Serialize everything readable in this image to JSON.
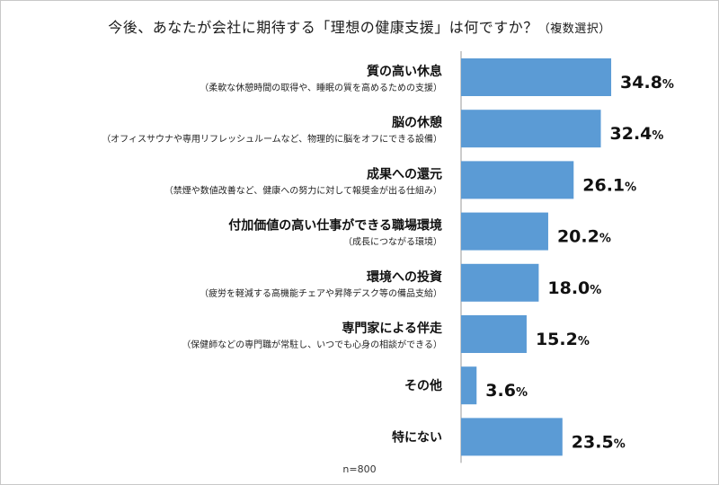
{
  "chart_data": {
    "type": "bar",
    "orientation": "horizontal",
    "title": "今後、あなたが会社に期待する「理想の健康支援」は何ですか？",
    "title_suffix": "（複数選択）",
    "note": "n=800",
    "unit": "%",
    "bar_color": "#5b9bd5",
    "xlim": [
      0,
      40
    ],
    "categories": [
      {
        "label": "質の高い休息",
        "sub": "（柔軟な休憩時間の取得や、睡眠の質を高めるための支援）"
      },
      {
        "label": "脳の休憩",
        "sub": "（オフィスサウナや専用リフレッシュルームなど、物理的に脳をオフにできる設備）"
      },
      {
        "label": "成果への還元",
        "sub": "（禁煙や数値改善など、健康への努力に対して報奨金が出る仕組み）"
      },
      {
        "label": "付加価値の高い仕事ができる職場環境",
        "sub": "（成長につながる環境）"
      },
      {
        "label": "環境への投資",
        "sub": "（疲労を軽減する高機能チェアや昇降デスク等の備品支給）"
      },
      {
        "label": "専門家による伴走",
        "sub": "（保健師などの専門職が常駐し、いつでも心身の相談ができる）"
      },
      {
        "label": "その他",
        "sub": ""
      },
      {
        "label": "特にない",
        "sub": ""
      }
    ],
    "values": [
      34.8,
      32.4,
      26.1,
      20.2,
      18.0,
      15.2,
      3.6,
      23.5
    ],
    "value_labels": [
      "34.8",
      "32.4",
      "26.1",
      "20.2",
      "18.0",
      "15.2",
      "3.6",
      "23.5"
    ]
  }
}
